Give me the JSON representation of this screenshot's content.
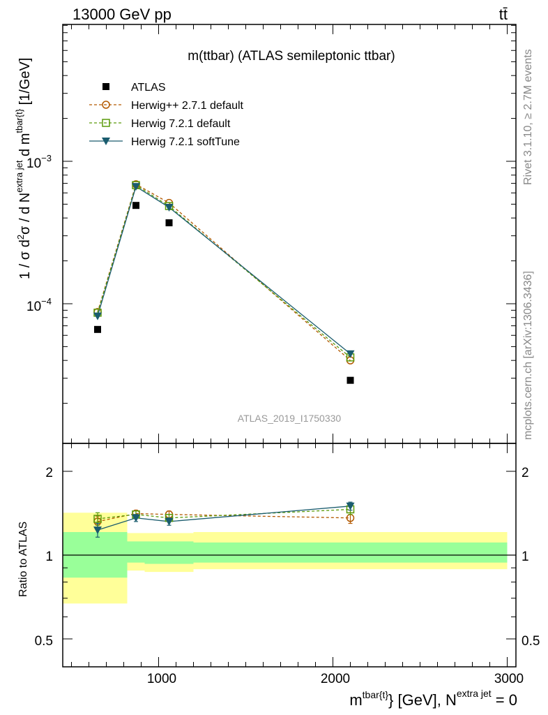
{
  "header": {
    "left": "13000 GeV pp",
    "right": "tt̄"
  },
  "side_labels": {
    "rivet": "Rivet 3.1.10, ≥ 2.7M events",
    "mcplots": "mcplots.cern.ch [arXiv:1306.3436]"
  },
  "chart_data": [
    {
      "type": "scatter",
      "title": "m(ttbar) (ATLAS semileptonic ttbar)",
      "watermark": "ATLAS_2019_I1750330",
      "ylabel": "1 / σ d²σ / d N^{extra jet} d m^{tbar{t}} [1/GeV]",
      "yscale": "log",
      "ylim": [
        1.4e-05,
        0.0095
      ],
      "xlim": [
        450,
        3050
      ],
      "ytick_labels": [
        "10^-3",
        "10^-4"
      ],
      "legend_position": "top-left",
      "series": [
        {
          "name": "ATLAS",
          "color": "#000000",
          "marker": "filled-square",
          "x": [
            650,
            870,
            1060,
            2100
          ],
          "y": [
            6.6e-05,
            0.00049,
            0.00037,
            2.9e-05
          ]
        },
        {
          "name": "Herwig++ 2.7.1 default",
          "color": "#b35900",
          "marker": "open-circle",
          "dashed": true,
          "x": [
            650,
            870,
            1060,
            2100
          ],
          "y": [
            8.75e-05,
            0.00069,
            0.00051,
            4e-05
          ]
        },
        {
          "name": "Herwig 7.2.1 default",
          "color": "#5a9a0a",
          "marker": "open-square",
          "dashed": true,
          "x": [
            650,
            870,
            1060,
            2100
          ],
          "y": [
            8.65e-05,
            0.00068,
            0.000485,
            4.2e-05
          ]
        },
        {
          "name": "Herwig 7.2.1 softTune",
          "color": "#1a5c6e",
          "marker": "filled-triangle-down",
          "dashed": false,
          "x": [
            650,
            870,
            1060,
            2100
          ],
          "y": [
            8.2e-05,
            0.000665,
            0.000475,
            4.45e-05
          ]
        }
      ]
    },
    {
      "type": "scatter",
      "ylabel": "Ratio to ATLAS",
      "xlabel": "m^{tbar{t}} [GeV], N^{extra jet} = 0",
      "yscale": "log",
      "ylim": [
        0.4,
        2.5
      ],
      "xlim": [
        450,
        3050
      ],
      "xtick_labels": [
        "1000",
        "2000",
        "3000"
      ],
      "ytick_labels": [
        "2",
        "1",
        "0.5"
      ],
      "reference_line": 1.0,
      "uncertainty_bands": [
        {
          "x0": 450,
          "x1": 820,
          "inner": [
            0.83,
            1.21
          ],
          "outer": [
            0.67,
            1.42
          ]
        },
        {
          "x0": 820,
          "x1": 920,
          "inner": [
            0.94,
            1.12
          ],
          "outer": [
            0.88,
            1.2
          ]
        },
        {
          "x0": 920,
          "x1": 1200,
          "inner": [
            0.93,
            1.12
          ],
          "outer": [
            0.87,
            1.2
          ]
        },
        {
          "x0": 1200,
          "x1": 3000,
          "inner": [
            0.94,
            1.11
          ],
          "outer": [
            0.89,
            1.21
          ]
        }
      ],
      "series": [
        {
          "name": "Herwig++ 2.7.1 default",
          "color": "#b35900",
          "marker": "open-circle",
          "dashed": true,
          "x": [
            650,
            870,
            1060,
            2100
          ],
          "y": [
            1.32,
            1.41,
            1.4,
            1.36
          ],
          "err": [
            0.06,
            0.04,
            0.04,
            0.06
          ]
        },
        {
          "name": "Herwig 7.2.1 default",
          "color": "#5a9a0a",
          "marker": "open-square",
          "dashed": true,
          "x": [
            650,
            870,
            1060,
            2100
          ],
          "y": [
            1.35,
            1.4,
            1.36,
            1.46
          ],
          "err": [
            0.07,
            0.04,
            0.04,
            0.06
          ]
        },
        {
          "name": "Herwig 7.2.1 softTune",
          "color": "#1a5c6e",
          "marker": "filled-triangle-down",
          "dashed": false,
          "x": [
            650,
            870,
            1060,
            2100
          ],
          "y": [
            1.23,
            1.36,
            1.32,
            1.5
          ],
          "err": [
            0.07,
            0.04,
            0.04,
            0.05
          ]
        }
      ]
    }
  ]
}
